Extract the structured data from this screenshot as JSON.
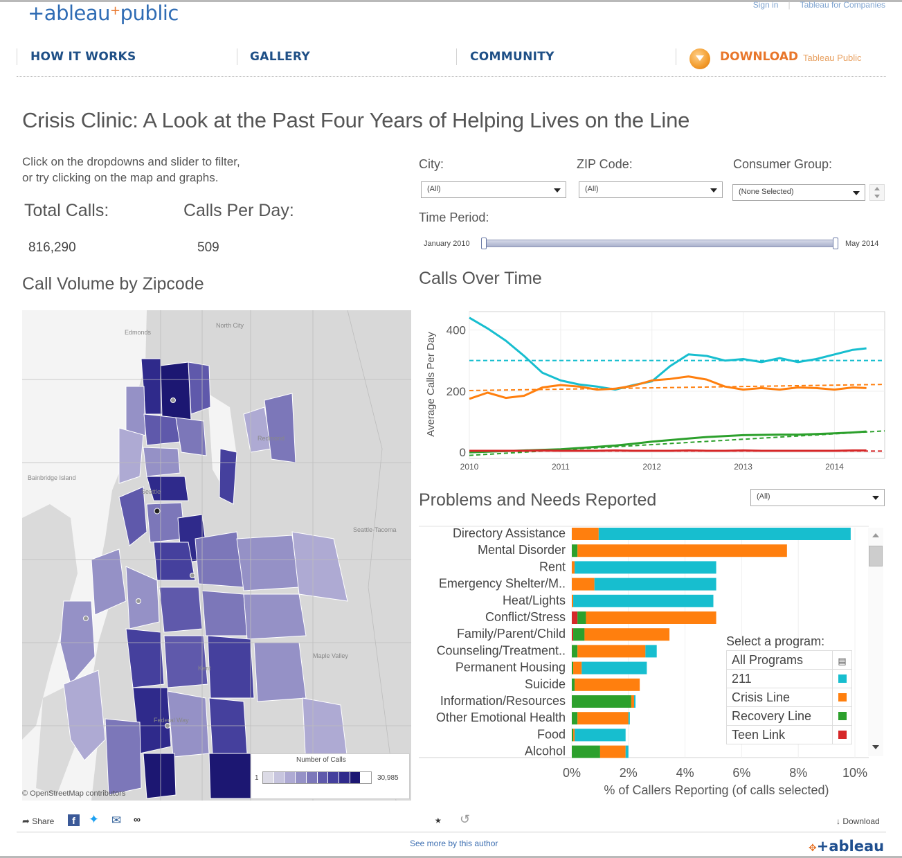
{
  "header": {
    "logo": "+ableau",
    "logo_plus": "+",
    "logo_public": "public",
    "top_links": [
      "Sign in",
      "Tableau for Companies"
    ],
    "nav": [
      "HOW IT WORKS",
      "GALLERY",
      "COMMUNITY"
    ],
    "download_label": "DOWNLOAD",
    "download_sub": "Tableau Public"
  },
  "dashboard": {
    "title": "Crisis Clinic: A Look at the Past Four Years of Helping Lives on the Line",
    "instructions_line1": "Click on the dropdowns and slider to filter,",
    "instructions_line2": "or try clicking on the map and graphs.",
    "total_calls_label": "Total Calls:",
    "total_calls_value": "816,290",
    "calls_per_day_label": "Calls Per Day:",
    "calls_per_day_value": "509"
  },
  "filters": {
    "city_label": "City:",
    "city_value": "(All)",
    "zip_label": "ZIP Code:",
    "zip_value": "(All)",
    "group_label": "Consumer Group:",
    "group_value": "(None Selected)",
    "time_label": "Time Period:",
    "time_start": "January 2010",
    "time_end": "May 2014"
  },
  "map": {
    "title": "Call Volume by Zipcode",
    "legend_title": "Number of Calls",
    "legend_min": "1",
    "legend_max": "30,985",
    "attribution": "© OpenStreetMap contributors",
    "place_labels": [
      "North City",
      "Edmonds",
      "Seattle",
      "Bainbridge Island",
      "Seattle-Tacoma",
      "Maple Valley",
      "Kent",
      "Federal Way",
      "Redmond"
    ],
    "colors": [
      "#dcdbe6",
      "#c7c5de",
      "#aeaad3",
      "#9591c6",
      "#7c77b9",
      "#5f59ab",
      "#45409d",
      "#2f2a8b",
      "#1c1772"
    ]
  },
  "calls_over_time": {
    "title": "Calls Over Time",
    "ylabel": "Average Calls Per Day",
    "y_ticks": [
      "400",
      "200",
      "0"
    ],
    "x_ticks": [
      "2010",
      "2011",
      "2012",
      "2013",
      "2014"
    ]
  },
  "problems": {
    "title": "Problems and Needs Reported",
    "filter_value": "(All)",
    "x_ticks": [
      "0%",
      "2%",
      "4%",
      "6%",
      "8%",
      "10%"
    ],
    "xlabel": "% of Callers Reporting (of calls selected)"
  },
  "program_legend": {
    "title": "Select a program:",
    "header": "All Programs",
    "items": [
      {
        "name": "211",
        "color": "#17becf"
      },
      {
        "name": "Crisis Line",
        "color": "#ff7f0e"
      },
      {
        "name": "Recovery Line",
        "color": "#2ca02c"
      },
      {
        "name": "Teen Link",
        "color": "#d62728"
      }
    ]
  },
  "footer": {
    "share": "Share",
    "see_more": "See more by this author",
    "download": "Download",
    "logo": "+ableau"
  },
  "chart_data": [
    {
      "type": "line",
      "title": "Calls Over Time",
      "xlabel": "",
      "ylabel": "Average Calls Per Day",
      "xlim": [
        2010,
        2014.55
      ],
      "ylim": [
        -20,
        460
      ],
      "x": [
        2010.0,
        2010.2,
        2010.4,
        2010.6,
        2010.8,
        2011.0,
        2011.2,
        2011.4,
        2011.6,
        2011.8,
        2012.0,
        2012.2,
        2012.4,
        2012.6,
        2012.8,
        2013.0,
        2013.2,
        2013.4,
        2013.6,
        2013.8,
        2014.0,
        2014.2,
        2014.35
      ],
      "series": [
        {
          "name": "211",
          "color": "#17becf",
          "values": [
            440,
            405,
            365,
            315,
            260,
            235,
            222,
            215,
            205,
            220,
            232,
            282,
            320,
            315,
            300,
            305,
            295,
            308,
            295,
            305,
            320,
            335,
            340
          ]
        },
        {
          "name": "Crisis Line",
          "color": "#ff7f0e",
          "values": [
            175,
            195,
            178,
            185,
            212,
            220,
            215,
            205,
            208,
            218,
            235,
            240,
            248,
            238,
            215,
            205,
            210,
            205,
            212,
            210,
            205,
            212,
            210
          ]
        },
        {
          "name": "Recovery Line",
          "color": "#2ca02c",
          "values": [
            0,
            2,
            4,
            6,
            8,
            10,
            14,
            18,
            22,
            28,
            35,
            40,
            45,
            50,
            53,
            56,
            57,
            58,
            58,
            60,
            62,
            65,
            68
          ]
        },
        {
          "name": "Teen Link",
          "color": "#d62728",
          "values": [
            5,
            5,
            5,
            5,
            6,
            5,
            5,
            5,
            6,
            5,
            5,
            5,
            6,
            5,
            5,
            6,
            5,
            5,
            5,
            5,
            5,
            6,
            6
          ]
        }
      ],
      "trend_lines": [
        {
          "name": "211 average",
          "color": "#17becf",
          "y": [
            300,
            300
          ]
        },
        {
          "name": "Crisis Line trend",
          "color": "#ff7f0e",
          "y": [
            202,
            222
          ]
        },
        {
          "name": "Recovery Line trend",
          "color": "#2ca02c",
          "y": [
            -10,
            70
          ]
        },
        {
          "name": "Teen Link average",
          "color": "#d62728",
          "y": [
            4,
            4
          ]
        }
      ],
      "y_ticks": [
        0,
        200,
        400
      ],
      "x_ticks": [
        2010,
        2011,
        2012,
        2013,
        2014
      ]
    },
    {
      "type": "bar",
      "stacked": true,
      "orientation": "horizontal",
      "title": "Problems and Needs Reported",
      "xlabel": "% of Callers Reporting (of calls selected)",
      "xlim": [
        0,
        10
      ],
      "categories": [
        "Directory Assistance",
        "Mental Disorder",
        "Rent",
        "Emergency Shelter/M..",
        "Heat/Lights",
        "Conflict/Stress",
        "Family/Parent/Child",
        "Counseling/Treatment..",
        "Permanent Housing",
        "Suicide",
        "Information/Resources",
        "Other Emotional Health",
        "Food",
        "Alcohol"
      ],
      "series": [
        {
          "name": "Teen Link",
          "color": "#d62728",
          "values": [
            0,
            0,
            0,
            0,
            0,
            0.2,
            0.05,
            0,
            0,
            0,
            0,
            0,
            0,
            0
          ]
        },
        {
          "name": "Recovery Line",
          "color": "#2ca02c",
          "values": [
            0,
            0.2,
            0,
            0,
            0,
            0.3,
            0.4,
            0.2,
            0.05,
            0.1,
            2.1,
            0.2,
            0.05,
            1.0
          ]
        },
        {
          "name": "Crisis Line",
          "color": "#ff7f0e",
          "values": [
            0.95,
            7.4,
            0.1,
            0.8,
            0.05,
            4.6,
            3.0,
            2.4,
            0.3,
            2.3,
            0.1,
            1.8,
            0.05,
            0.9
          ]
        },
        {
          "name": "211",
          "color": "#17becf",
          "values": [
            8.9,
            0,
            5.0,
            4.3,
            4.95,
            0,
            0,
            0.4,
            2.3,
            0,
            0.05,
            0.05,
            1.8,
            0.1
          ]
        }
      ],
      "x_ticks": [
        "0%",
        "2%",
        "4%",
        "6%",
        "8%",
        "10%"
      ]
    }
  ]
}
